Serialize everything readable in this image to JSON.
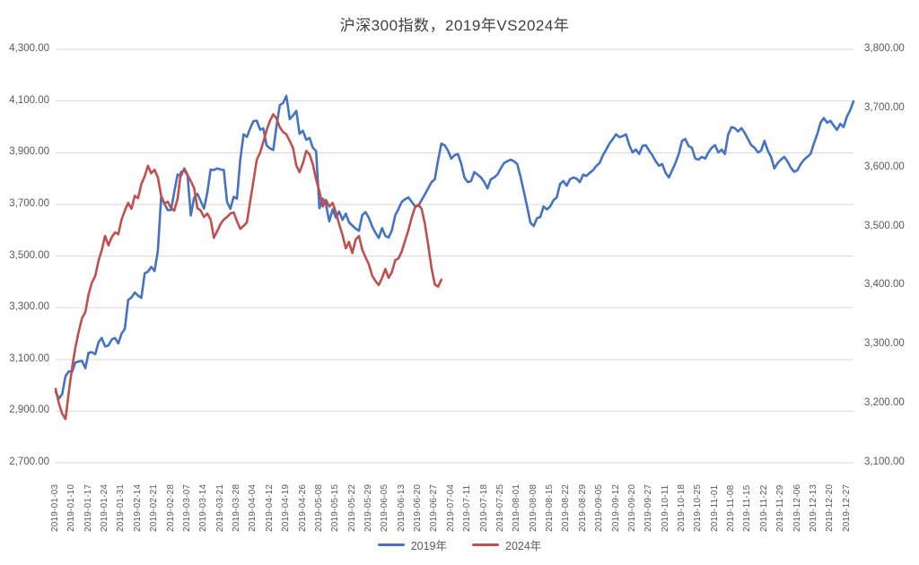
{
  "title": "沪深300指数，2019年VS2024年",
  "colors": {
    "series_2019": "#4472C4",
    "series_2024": "#C0504D",
    "gridline": "#D9D9D9",
    "axis_text": "#595959",
    "title_text": "#3F3F3F",
    "background": "#FFFFFF"
  },
  "chart_data": {
    "type": "line",
    "title": "沪深300指数，2019年VS2024年",
    "grid": true,
    "legend_position": "bottom",
    "y_axis_left": {
      "min": 2700,
      "max": 4300,
      "step": 200,
      "tick_labels": [
        "4,300.00",
        "4,100.00",
        "3,900.00",
        "3,700.00",
        "3,500.00",
        "3,300.00",
        "3,100.00",
        "2,900.00",
        "2,700.00"
      ]
    },
    "y_axis_right": {
      "min": 3100,
      "max": 3800,
      "step": 100,
      "tick_labels": [
        "3,800.00",
        "3,700.00",
        "3,600.00",
        "3,500.00",
        "3,400.00",
        "3,300.00",
        "3,200.00",
        "3,100.00"
      ]
    },
    "x_axis": {
      "trading_days": 243,
      "days_per_label": 5,
      "tick_labels": [
        "2019-01-03",
        "2019-01-10",
        "2019-01-17",
        "2019-01-24",
        "2019-01-31",
        "2019-02-14",
        "2019-02-21",
        "2019-02-28",
        "2019-03-07",
        "2019-03-14",
        "2019-03-21",
        "2019-03-28",
        "2019-04-04",
        "2019-04-12",
        "2019-04-19",
        "2019-04-26",
        "2019-05-08",
        "2019-05-15",
        "2019-05-22",
        "2019-05-29",
        "2019-06-05",
        "2019-06-13",
        "2019-06-20",
        "2019-06-27",
        "2019-07-04",
        "2019-07-11",
        "2019-07-18",
        "2019-07-25",
        "2019-08-01",
        "2019-08-08",
        "2019-08-15",
        "2019-08-22",
        "2019-08-29",
        "2019-09-05",
        "2019-09-12",
        "2019-09-20",
        "2019-09-27",
        "2019-10-11",
        "2019-10-18",
        "2019-10-25",
        "2019-11-01",
        "2019-11-08",
        "2019-11-15",
        "2019-11-22",
        "2019-11-29",
        "2019-12-06",
        "2019-12-13",
        "2019-12-20",
        "2019-12-27"
      ]
    },
    "series": [
      {
        "name": "2019年",
        "axis": "left",
        "color": "#4472C4",
        "values": [
          2975,
          2948,
          2966,
          3035,
          3054,
          3052,
          3088,
          3092,
          3094,
          3066,
          3126,
          3128,
          3120,
          3166,
          3183,
          3150,
          3154,
          3177,
          3183,
          3162,
          3200,
          3218,
          3330,
          3340,
          3359,
          3347,
          3338,
          3433,
          3440,
          3458,
          3442,
          3520,
          3729,
          3702,
          3678,
          3678,
          3749,
          3816,
          3810,
          3839,
          3816,
          3657,
          3726,
          3741,
          3713,
          3684,
          3745,
          3835,
          3833,
          3839,
          3835,
          3833,
          3709,
          3683,
          3729,
          3722,
          3872,
          3971,
          3961,
          3994,
          4022,
          4024,
          3989,
          3994,
          3928,
          3917,
          3910,
          4004,
          4084,
          4092,
          4120,
          4030,
          4044,
          4062,
          3973,
          3985,
          3950,
          3957,
          3920,
          3906,
          3685,
          3722,
          3700,
          3634,
          3680,
          3649,
          3672,
          3640,
          3664,
          3630,
          3618,
          3606,
          3598,
          3658,
          3670,
          3648,
          3615,
          3590,
          3570,
          3608,
          3578,
          3571,
          3600,
          3658,
          3682,
          3710,
          3720,
          3727,
          3710,
          3693,
          3694,
          3717,
          3738,
          3762,
          3786,
          3797,
          3870,
          3935,
          3929,
          3908,
          3877,
          3890,
          3895,
          3859,
          3804,
          3786,
          3790,
          3825,
          3815,
          3804,
          3786,
          3762,
          3797,
          3804,
          3815,
          3839,
          3860,
          3867,
          3873,
          3867,
          3856,
          3807,
          3751,
          3692,
          3629,
          3616,
          3646,
          3651,
          3692,
          3680,
          3692,
          3716,
          3727,
          3779,
          3790,
          3772,
          3797,
          3804,
          3800,
          3786,
          3815,
          3810,
          3822,
          3832,
          3849,
          3860,
          3890,
          3912,
          3936,
          3953,
          3971,
          3960,
          3964,
          3971,
          3929,
          3901,
          3912,
          3895,
          3926,
          3929,
          3908,
          3890,
          3867,
          3849,
          3856,
          3822,
          3804,
          3832,
          3860,
          3895,
          3946,
          3953,
          3926,
          3919,
          3877,
          3873,
          3884,
          3877,
          3901,
          3919,
          3929,
          3901,
          3912,
          3895,
          3971,
          3999,
          3995,
          3982,
          3995,
          3977,
          3953,
          3929,
          3919,
          3901,
          3908,
          3946,
          3908,
          3884,
          3839,
          3860,
          3873,
          3884,
          3866,
          3842,
          3826,
          3832,
          3856,
          3873,
          3884,
          3895,
          3936,
          3971,
          4016,
          4034,
          4016,
          4023,
          4005,
          3988,
          4012,
          3999,
          4040,
          4064,
          4099
        ]
      },
      {
        "name": "2024年",
        "axis": "right",
        "color": "#C0504D",
        "values": [
          3225,
          3200,
          3183,
          3174,
          3220,
          3262,
          3295,
          3322,
          3345,
          3355,
          3385,
          3405,
          3416,
          3442,
          3460,
          3484,
          3468,
          3482,
          3490,
          3487,
          3512,
          3527,
          3540,
          3530,
          3552,
          3548,
          3572,
          3585,
          3603,
          3590,
          3596,
          3583,
          3552,
          3539,
          3542,
          3531,
          3527,
          3547,
          3592,
          3595,
          3587,
          3577,
          3565,
          3531,
          3527,
          3516,
          3522,
          3512,
          3481,
          3492,
          3504,
          3512,
          3516,
          3522,
          3524,
          3509,
          3496,
          3501,
          3507,
          3542,
          3577,
          3613,
          3625,
          3643,
          3663,
          3679,
          3690,
          3683,
          3668,
          3660,
          3656,
          3645,
          3633,
          3603,
          3592,
          3607,
          3628,
          3622,
          3606,
          3580,
          3560,
          3534,
          3545,
          3534,
          3540,
          3524,
          3504,
          3486,
          3463,
          3474,
          3455,
          3478,
          3484,
          3461,
          3448,
          3436,
          3417,
          3408,
          3401,
          3413,
          3428,
          3413,
          3423,
          3443,
          3446,
          3458,
          3476,
          3494,
          3515,
          3532,
          3537,
          3530,
          3505,
          3469,
          3430,
          3402,
          3398,
          3410
        ]
      }
    ]
  },
  "legend": [
    {
      "label": "2019年",
      "color": "#4472C4"
    },
    {
      "label": "2024年",
      "color": "#C0504D"
    }
  ]
}
